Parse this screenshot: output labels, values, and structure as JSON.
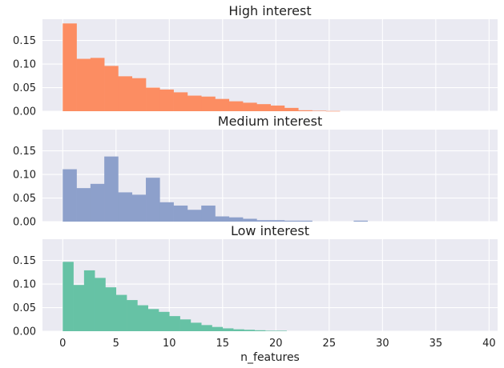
{
  "chart_data": [
    {
      "type": "histogram",
      "title": "High interest",
      "color": "#fc8d62",
      "bin_width": 1.3,
      "bins_start": 0,
      "values": [
        0.186,
        0.111,
        0.113,
        0.096,
        0.074,
        0.07,
        0.05,
        0.046,
        0.04,
        0.033,
        0.031,
        0.026,
        0.021,
        0.018,
        0.015,
        0.012,
        0.007,
        0.002,
        0.001,
        0.0005
      ],
      "ylim": [
        0,
        0.195
      ],
      "yticks": [
        "0.00",
        "0.05",
        "0.10",
        "0.15"
      ]
    },
    {
      "type": "histogram",
      "title": "Medium interest",
      "color": "#8da0cb",
      "bin_width": 1.3,
      "bins_start": 0,
      "values": [
        0.111,
        0.071,
        0.08,
        0.138,
        0.062,
        0.057,
        0.093,
        0.041,
        0.034,
        0.025,
        0.034,
        0.011,
        0.009,
        0.006,
        0.003,
        0.003,
        0.002,
        0.002,
        0.0,
        0.0,
        0.0,
        0.002,
        0.0,
        0.0,
        0.0,
        0.0,
        0.0,
        0.0,
        0.0,
        0.0,
        0.0,
        0.0,
        0.0,
        0.0,
        0.0,
        0.0,
        0.0,
        0.0,
        0.002,
        0.002
      ],
      "ylim": [
        0,
        0.195
      ],
      "yticks": [
        "0.00",
        "0.05",
        "0.10",
        "0.15"
      ]
    },
    {
      "type": "histogram",
      "title": "Low interest",
      "color": "#66c2a5",
      "bin_width": 1.0,
      "bins_start": 0,
      "values": [
        0.147,
        0.098,
        0.129,
        0.113,
        0.093,
        0.077,
        0.066,
        0.055,
        0.047,
        0.041,
        0.032,
        0.025,
        0.018,
        0.013,
        0.009,
        0.006,
        0.004,
        0.003,
        0.002,
        0.001,
        0.001
      ],
      "ylim": [
        0,
        0.195
      ],
      "yticks": [
        "0.00",
        "0.05",
        "0.10",
        "0.15"
      ]
    }
  ],
  "x_axis": {
    "label": "n_features",
    "range": [
      -1.9,
      40.8
    ],
    "ticks": [
      0,
      5,
      10,
      15,
      20,
      25,
      30,
      35,
      40
    ],
    "tick_labels": [
      "0",
      "5",
      "10",
      "15",
      "20",
      "25",
      "30",
      "35",
      "40"
    ]
  },
  "style": {
    "plot_background": "#eaeaf2",
    "grid_color": "#ffffff",
    "grid": true
  }
}
